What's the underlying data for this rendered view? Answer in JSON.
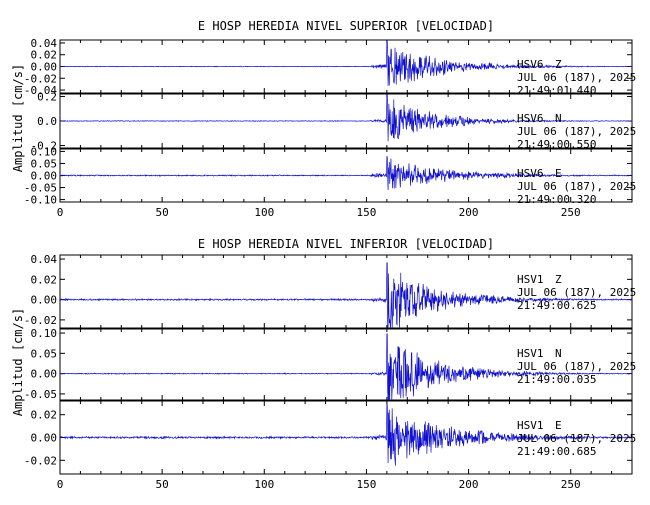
{
  "chart_data": [
    {
      "type": "line",
      "title": "E HOSP HEREDIA NIVEL SUPERIOR [VELOCIDAD]",
      "ylabel": "Amplitud [cm/s]",
      "xlabel": "",
      "xlim": [
        0,
        280
      ],
      "x_ticks": [
        "0",
        "50",
        "100",
        "150",
        "200",
        "250"
      ],
      "grid": false,
      "series_color": "#1010d0",
      "panels": [
        {
          "station": "HSV6",
          "component": "Z",
          "date": "JUL 06 (187), 2025",
          "time": "21:49:01.440",
          "ylim": [
            -0.045,
            0.045
          ],
          "y_ticks": [
            "0.04",
            "0.02",
            "0.00",
            "-0.02",
            "-0.04"
          ],
          "y_tick_values": [
            0.04,
            0.02,
            0.0,
            -0.02,
            -0.04
          ],
          "noise": 0.0006,
          "pre_event": 0.004,
          "peak": 0.044,
          "peak_time": 160,
          "decay": 25
        },
        {
          "station": "HSV6",
          "component": "N",
          "date": "JUL 06 (187), 2025",
          "time": "21:49:00.550",
          "ylim": [
            -0.22,
            0.22
          ],
          "y_ticks": [
            "0.2",
            "0.0",
            "-0.2"
          ],
          "y_tick_values": [
            0.2,
            0.0,
            -0.2
          ],
          "noise": 0.003,
          "pre_event": 0.012,
          "peak": 0.22,
          "peak_time": 160,
          "decay": 22
        },
        {
          "station": "HSV6",
          "component": "E",
          "date": "JUL 06 (187), 2025",
          "time": "21:49:00.320",
          "ylim": [
            -0.11,
            0.11
          ],
          "y_ticks": [
            "0.10",
            "0.05",
            "0.00",
            "-0.05",
            "-0.10"
          ],
          "y_tick_values": [
            0.1,
            0.05,
            0.0,
            -0.05,
            -0.1
          ],
          "noise": 0.0025,
          "pre_event": 0.01,
          "peak": 0.08,
          "peak_time": 160,
          "decay": 28
        }
      ]
    },
    {
      "type": "line",
      "title": "E HOSP HEREDIA NIVEL INFERIOR [VELOCIDAD]",
      "ylabel": "Amplitud [cm/s]",
      "xlabel": "",
      "xlim": [
        0,
        280
      ],
      "x_ticks": [
        "0",
        "50",
        "100",
        "150",
        "200",
        "250"
      ],
      "grid": false,
      "series_color": "#1010d0",
      "panels": [
        {
          "station": "HSV1",
          "component": "Z",
          "date": "JUL 06 (187), 2025",
          "time": "21:49:00.625",
          "ylim": [
            -0.028,
            0.044
          ],
          "y_ticks": [
            "0.04",
            "0.02",
            "0.00",
            "-0.02"
          ],
          "y_tick_values": [
            0.04,
            0.02,
            0.0,
            -0.02
          ],
          "noise": 0.0008,
          "pre_event": 0.003,
          "peak": 0.037,
          "peak_time": 160,
          "decay": 25
        },
        {
          "station": "HSV1",
          "component": "N",
          "date": "JUL 06 (187), 2025",
          "time": "21:49:00.035",
          "ylim": [
            -0.065,
            0.11
          ],
          "y_ticks": [
            "0.10",
            "0.05",
            "0.00",
            "-0.05"
          ],
          "y_tick_values": [
            0.1,
            0.05,
            0.0,
            -0.05
          ],
          "noise": 0.0012,
          "pre_event": 0.005,
          "peak": 0.1,
          "peak_time": 160,
          "decay": 24
        },
        {
          "station": "HSV1",
          "component": "E",
          "date": "JUL 06 (187), 2025",
          "time": "21:49:00.685",
          "ylim": [
            -0.032,
            0.032
          ],
          "y_ticks": [
            "0.02",
            "0.00",
            "-0.02"
          ],
          "y_tick_values": [
            0.02,
            0.0,
            -0.02
          ],
          "noise": 0.0009,
          "pre_event": 0.003,
          "peak": 0.03,
          "peak_time": 160,
          "decay": 30
        }
      ]
    }
  ]
}
